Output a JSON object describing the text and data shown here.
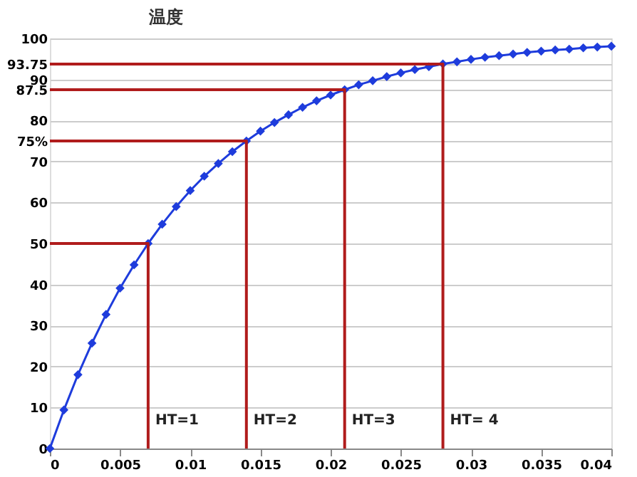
{
  "chart_data": {
    "type": "line",
    "title": "温度",
    "x": [
      0,
      0.001,
      0.002,
      0.003,
      0.004,
      0.005,
      0.006,
      0.007,
      0.008,
      0.009,
      0.01,
      0.011,
      0.012,
      0.013,
      0.014,
      0.015,
      0.016,
      0.017,
      0.018,
      0.019,
      0.02,
      0.021,
      0.022,
      0.023,
      0.024,
      0.025,
      0.026,
      0.027,
      0.028,
      0.029,
      0.03,
      0.031,
      0.032,
      0.033,
      0.034,
      0.035,
      0.036,
      0.037,
      0.038,
      0.039,
      0.04
    ],
    "series": [
      {
        "color": "#1e3cdc",
        "marker": "diamond",
        "values": [
          0,
          9.4,
          18.0,
          25.7,
          32.7,
          39.1,
          44.8,
          50,
          54.7,
          59.0,
          62.9,
          66.4,
          69.5,
          72.4,
          75,
          77.4,
          79.5,
          81.4,
          83.2,
          84.8,
          86.2,
          87.5,
          88.7,
          89.7,
          90.7,
          91.6,
          92.4,
          93.1,
          93.8,
          94.3,
          94.9,
          95.4,
          95.8,
          96.2,
          96.6,
          96.9,
          97.2,
          97.4,
          97.7,
          97.9,
          98.1
        ]
      },
      {
        "type": "line",
        "marker": "none",
        "color": "#b01c1c",
        "x": [
          0,
          0.007,
          0.007
        ],
        "values": [
          50,
          50,
          0
        ]
      },
      {
        "type": "line",
        "marker": "none",
        "color": "#b01c1c",
        "x": [
          0,
          0.014,
          0.014
        ],
        "values": [
          75,
          75,
          0
        ]
      },
      {
        "type": "line",
        "marker": "none",
        "color": "#b01c1c",
        "x": [
          0,
          0.021,
          0.021
        ],
        "values": [
          87.5,
          87.5,
          0
        ]
      },
      {
        "type": "line",
        "marker": "none",
        "color": "#b01c1c",
        "x": [
          0,
          0.028,
          0.028
        ],
        "values": [
          93.75,
          93.75,
          0
        ]
      }
    ],
    "annotations": [
      {
        "text": "HT=1",
        "x": 0.007,
        "y": 7
      },
      {
        "text": "HT=2",
        "x": 0.014,
        "y": 7
      },
      {
        "text": "HT=3",
        "x": 0.021,
        "y": 7
      },
      {
        "text": "HT= 4",
        "x": 0.028,
        "y": 7
      }
    ],
    "xlim": [
      0,
      0.04
    ],
    "xticks": [
      0,
      0.005,
      0.01,
      0.015,
      0.02,
      0.025,
      0.03,
      0.035,
      0.04
    ],
    "ylim": [
      0,
      100
    ],
    "yticks": [
      0,
      10,
      20,
      30,
      40,
      50,
      60,
      70,
      {
        "value": 75,
        "label": "75%"
      },
      80,
      87.5,
      90,
      93.75,
      100
    ],
    "grid": "y"
  }
}
